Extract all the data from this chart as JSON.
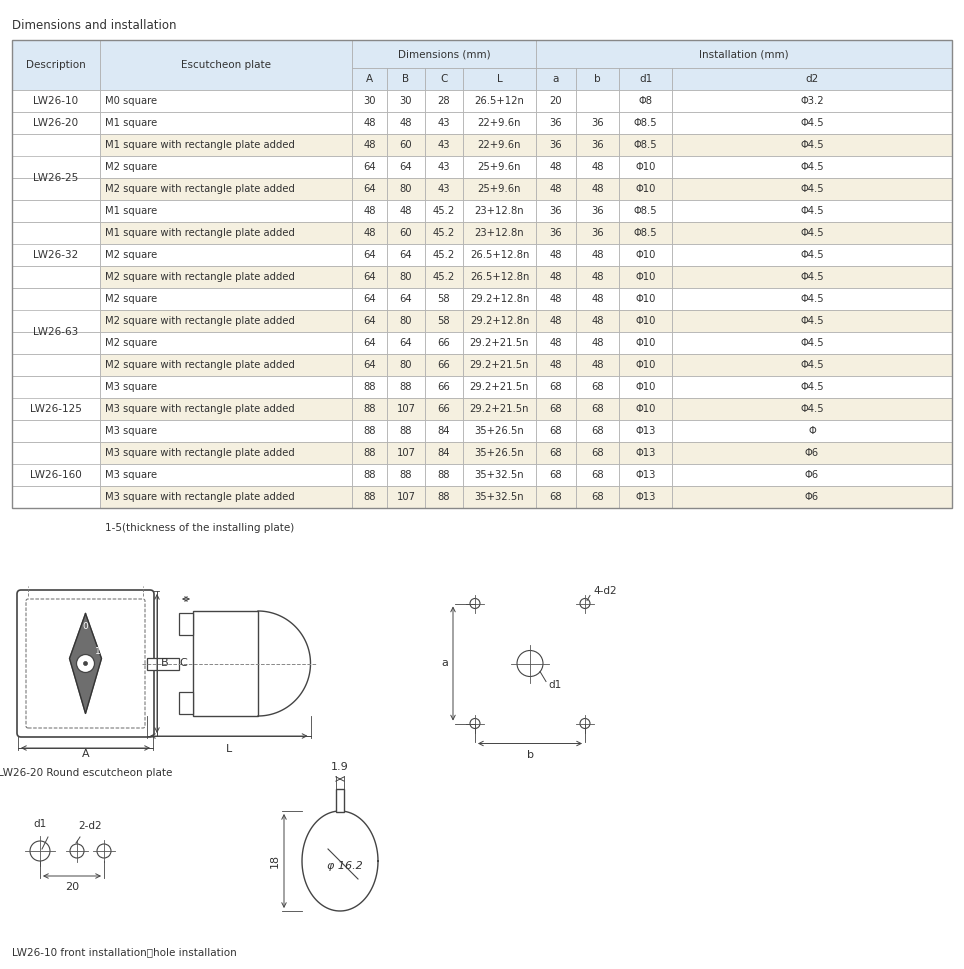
{
  "title": "Dimensions and installation",
  "header_bg": "#dce9f5",
  "alt_row_bg": "#f5f0e0",
  "white_row_bg": "#ffffff",
  "rows": [
    {
      "desc": "LW26-10",
      "plate": "M0 square",
      "A": "30",
      "B": "30",
      "C": "28",
      "L": "26.5+12n",
      "a": "20",
      "b": "",
      "d1": "Φ8",
      "d2": "Φ3.2",
      "hi": false,
      "span": 1
    },
    {
      "desc": "LW26-20",
      "plate": "M1 square",
      "A": "48",
      "B": "48",
      "C": "43",
      "L": "22+9.6n",
      "a": "36",
      "b": "36",
      "d1": "Φ8.5",
      "d2": "Φ4.5",
      "hi": false,
      "span": 1
    },
    {
      "desc": "LW26-25",
      "plate": "M1 square with rectangle plate added",
      "A": "48",
      "B": "60",
      "C": "43",
      "L": "22+9.6n",
      "a": "36",
      "b": "36",
      "d1": "Φ8.5",
      "d2": "Φ4.5",
      "hi": true,
      "span": 4
    },
    {
      "desc": "",
      "plate": "M2 square",
      "A": "64",
      "B": "64",
      "C": "43",
      "L": "25+9.6n",
      "a": "48",
      "b": "48",
      "d1": "Φ10",
      "d2": "Φ4.5",
      "hi": false,
      "span": 0
    },
    {
      "desc": "",
      "plate": "M2 square with rectangle plate added",
      "A": "64",
      "B": "80",
      "C": "43",
      "L": "25+9.6n",
      "a": "48",
      "b": "48",
      "d1": "Φ10",
      "d2": "Φ4.5",
      "hi": true,
      "span": 0
    },
    {
      "desc": "",
      "plate": "M1 square",
      "A": "48",
      "B": "48",
      "C": "45.2",
      "L": "23+12.8n",
      "a": "36",
      "b": "36",
      "d1": "Φ8.5",
      "d2": "Φ4.5",
      "hi": false,
      "span": 0
    },
    {
      "desc": "LW26-32",
      "plate": "M1 square with rectangle plate added",
      "A": "48",
      "B": "60",
      "C": "45.2",
      "L": "23+12.8n",
      "a": "36",
      "b": "36",
      "d1": "Φ8.5",
      "d2": "Φ4.5",
      "hi": true,
      "span": 3
    },
    {
      "desc": "",
      "plate": "M2 square",
      "A": "64",
      "B": "64",
      "C": "45.2",
      "L": "26.5+12.8n",
      "a": "48",
      "b": "48",
      "d1": "Φ10",
      "d2": "Φ4.5",
      "hi": false,
      "span": 0
    },
    {
      "desc": "",
      "plate": "M2 square with rectangle plate added",
      "A": "64",
      "B": "80",
      "C": "45.2",
      "L": "26.5+12.8n",
      "a": "48",
      "b": "48",
      "d1": "Φ10",
      "d2": "Φ4.5",
      "hi": true,
      "span": 0
    },
    {
      "desc": "LW26-63",
      "plate": "M2 square",
      "A": "64",
      "B": "64",
      "C": "58",
      "L": "29.2+12.8n",
      "a": "48",
      "b": "48",
      "d1": "Φ10",
      "d2": "Φ4.5",
      "hi": false,
      "span": 4
    },
    {
      "desc": "",
      "plate": "M2 square with rectangle plate added",
      "A": "64",
      "B": "80",
      "C": "58",
      "L": "29.2+12.8n",
      "a": "48",
      "b": "48",
      "d1": "Φ10",
      "d2": "Φ4.5",
      "hi": true,
      "span": 0
    },
    {
      "desc": "",
      "plate": "M2 square",
      "A": "64",
      "B": "64",
      "C": "66",
      "L": "29.2+21.5n",
      "a": "48",
      "b": "48",
      "d1": "Φ10",
      "d2": "Φ4.5",
      "hi": false,
      "span": 0
    },
    {
      "desc": "",
      "plate": "M2 square with rectangle plate added",
      "A": "64",
      "B": "80",
      "C": "66",
      "L": "29.2+21.5n",
      "a": "48",
      "b": "48",
      "d1": "Φ10",
      "d2": "Φ4.5",
      "hi": true,
      "span": 0
    },
    {
      "desc": "LW26-125",
      "plate": "M3 square",
      "A": "88",
      "B": "88",
      "C": "66",
      "L": "29.2+21.5n",
      "a": "68",
      "b": "68",
      "d1": "Φ10",
      "d2": "Φ4.5",
      "hi": false,
      "span": 3
    },
    {
      "desc": "",
      "plate": "M3 square with rectangle plate added",
      "A": "88",
      "B": "107",
      "C": "66",
      "L": "29.2+21.5n",
      "a": "68",
      "b": "68",
      "d1": "Φ10",
      "d2": "Φ4.5",
      "hi": true,
      "span": 0
    },
    {
      "desc": "",
      "plate": "M3 square",
      "A": "88",
      "B": "88",
      "C": "84",
      "L": "35+26.5n",
      "a": "68",
      "b": "68",
      "d1": "Φ13",
      "d2": "Φ",
      "hi": false,
      "span": 0
    },
    {
      "desc": "LW26-160",
      "plate": "M3 square with rectangle plate added",
      "A": "88",
      "B": "107",
      "C": "84",
      "L": "35+26.5n",
      "a": "68",
      "b": "68",
      "d1": "Φ13",
      "d2": "Φ6",
      "hi": true,
      "span": 3
    },
    {
      "desc": "",
      "plate": "M3 square",
      "A": "88",
      "B": "88",
      "C": "88",
      "L": "35+32.5n",
      "a": "68",
      "b": "68",
      "d1": "Φ13",
      "d2": "Φ6",
      "hi": false,
      "span": 0
    },
    {
      "desc": "",
      "plate": "M3 square with rectangle plate added",
      "A": "88",
      "B": "107",
      "C": "88",
      "L": "35+32.5n",
      "a": "68",
      "b": "68",
      "d1": "Φ13",
      "d2": "Φ6",
      "hi": true,
      "span": 0
    }
  ],
  "footer_label1": "LW26-20 Round escutcheon plate",
  "footer_label2": "LW26-10 front installation、hole installation",
  "diagram_note": "1-5(thickness of the installing plate)"
}
